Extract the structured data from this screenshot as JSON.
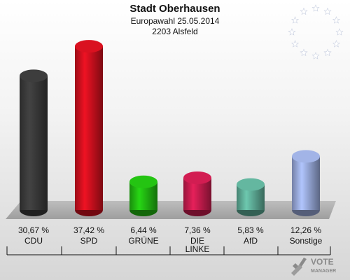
{
  "header": {
    "title": "Stadt Oberhausen",
    "subtitle": "Europawahl 25.05.2014",
    "district": "2203 Alsfeld"
  },
  "logo": {
    "line1": "VOTE",
    "line2": "MANAGER"
  },
  "colors": {
    "CDU": "#3a3a3a",
    "SPD": "#d0101e",
    "GRUENE": "#22bb11",
    "DIE_LINKE": "#c81c4e",
    "AfD": "#5fae98",
    "Sonstige": "#9aabdc"
  },
  "chart_data": {
    "type": "bar",
    "title": "Stadt Oberhausen",
    "categories": [
      "CDU",
      "SPD",
      "GRÜNE",
      "DIE LINKE",
      "AfD",
      "Sonstige"
    ],
    "values": [
      30.67,
      37.42,
      6.44,
      7.36,
      5.83,
      12.26
    ],
    "value_labels": [
      "30,67 %",
      "37,42 %",
      "6,44 %",
      "7,36 %",
      "5,83 %",
      "12,26 %"
    ],
    "unit": "%",
    "colors": [
      "#3a3a3a",
      "#d0101e",
      "#22bb11",
      "#c81c4e",
      "#5fae98",
      "#9aabdc"
    ],
    "grid": false,
    "legend": "none"
  }
}
